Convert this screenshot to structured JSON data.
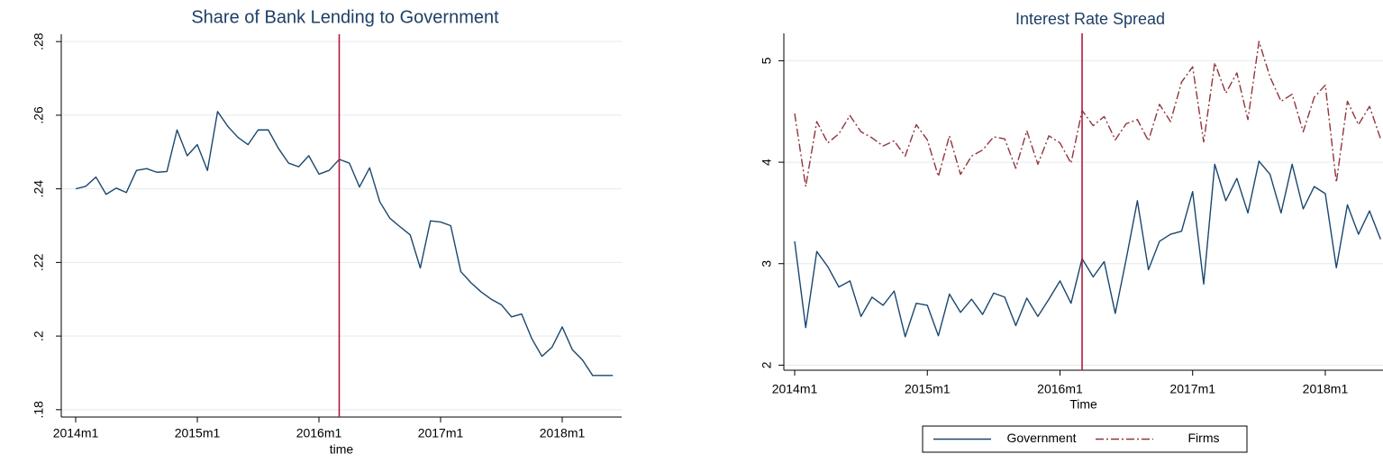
{
  "chart_data": [
    {
      "type": "line",
      "title": "Share of Bank Lending to Government",
      "xlabel": "time",
      "x": [
        "2014m1",
        "2014m2",
        "2014m3",
        "2014m4",
        "2014m5",
        "2014m6",
        "2014m7",
        "2014m8",
        "2014m9",
        "2014m10",
        "2014m11",
        "2014m12",
        "2015m1",
        "2015m2",
        "2015m3",
        "2015m4",
        "2015m5",
        "2015m6",
        "2015m7",
        "2015m8",
        "2015m9",
        "2015m10",
        "2015m11",
        "2015m12",
        "2016m1",
        "2016m2",
        "2016m3",
        "2016m4",
        "2016m5",
        "2016m6",
        "2016m7",
        "2016m8",
        "2016m9",
        "2016m10",
        "2016m11",
        "2016m12",
        "2017m1",
        "2017m2",
        "2017m3",
        "2017m4",
        "2017m5",
        "2017m6",
        "2017m7",
        "2017m8",
        "2017m9",
        "2017m10",
        "2017m11",
        "2017m12",
        "2018m1",
        "2018m2",
        "2018m3",
        "2018m4",
        "2018m5",
        "2018m6"
      ],
      "values": [
        0.24,
        0.2407,
        0.2432,
        0.2385,
        0.2402,
        0.239,
        0.245,
        0.2455,
        0.2445,
        0.2447,
        0.256,
        0.249,
        0.252,
        0.245,
        0.261,
        0.257,
        0.254,
        0.252,
        0.256,
        0.256,
        0.251,
        0.247,
        0.246,
        0.249,
        0.244,
        0.245,
        0.248,
        0.247,
        0.2405,
        0.2457,
        0.2365,
        0.232,
        0.2297,
        0.2275,
        0.2185,
        0.2313,
        0.231,
        0.23,
        0.2175,
        0.2145,
        0.212,
        0.21,
        0.2085,
        0.2052,
        0.206,
        0.1993,
        0.1945,
        0.197,
        0.2025,
        0.1963,
        0.1935,
        0.1893,
        0.1893,
        0.1893
      ],
      "color": "#1a476f",
      "ylim": [
        0.178,
        0.282
      ],
      "yticks": [
        {
          "value": 0.18,
          "label": ".18"
        },
        {
          "value": 0.2,
          "label": ".2"
        },
        {
          "value": 0.22,
          "label": ".22"
        },
        {
          "value": 0.24,
          "label": ".24"
        },
        {
          "value": 0.26,
          "label": ".26"
        },
        {
          "value": 0.28,
          "label": ".28"
        }
      ],
      "xticks": [
        "2014m1",
        "2015m1",
        "2016m1",
        "2017m1",
        "2018m1"
      ],
      "grid": true,
      "vline": {
        "x": "2016m3",
        "color": "#b0173d"
      }
    },
    {
      "type": "line",
      "title": "Interest Rate Spread",
      "xlabel": "Time",
      "x": [
        "2014m1",
        "2014m2",
        "2014m3",
        "2014m4",
        "2014m5",
        "2014m6",
        "2014m7",
        "2014m8",
        "2014m9",
        "2014m10",
        "2014m11",
        "2014m12",
        "2015m1",
        "2015m2",
        "2015m3",
        "2015m4",
        "2015m5",
        "2015m6",
        "2015m7",
        "2015m8",
        "2015m9",
        "2015m10",
        "2015m11",
        "2015m12",
        "2016m1",
        "2016m2",
        "2016m3",
        "2016m4",
        "2016m5",
        "2016m6",
        "2016m7",
        "2016m8",
        "2016m9",
        "2016m10",
        "2016m11",
        "2016m12",
        "2017m1",
        "2017m2",
        "2017m3",
        "2017m4",
        "2017m5",
        "2017m6",
        "2017m7",
        "2017m8",
        "2017m9",
        "2017m10",
        "2017m11",
        "2017m12",
        "2018m1",
        "2018m2",
        "2018m3",
        "2018m4",
        "2018m5",
        "2018m6"
      ],
      "series": [
        {
          "name": "Government",
          "color": "#1a476f",
          "linestyle": "solid",
          "values": [
            3.22,
            2.37,
            3.12,
            2.97,
            2.77,
            2.83,
            2.48,
            2.67,
            2.59,
            2.73,
            2.28,
            2.61,
            2.59,
            2.29,
            2.7,
            2.52,
            2.65,
            2.5,
            2.71,
            2.67,
            2.39,
            2.66,
            2.48,
            2.65,
            2.83,
            2.61,
            3.05,
            2.87,
            3.02,
            2.51,
            3.05,
            3.62,
            2.94,
            3.22,
            3.29,
            3.32,
            3.71,
            2.8,
            3.98,
            3.62,
            3.84,
            3.5,
            4.01,
            3.88,
            3.5,
            3.98,
            3.54,
            3.76,
            3.69,
            2.96,
            3.58,
            3.29,
            3.52,
            3.24
          ]
        },
        {
          "name": "Firms",
          "color": "#90353b",
          "linestyle": "dashdot",
          "values": [
            4.48,
            3.76,
            4.4,
            4.19,
            4.28,
            4.46,
            4.3,
            4.24,
            4.16,
            4.21,
            4.06,
            4.37,
            4.22,
            3.86,
            4.26,
            3.88,
            4.06,
            4.12,
            4.25,
            4.23,
            3.94,
            4.31,
            3.98,
            4.26,
            4.19,
            3.99,
            4.51,
            4.36,
            4.45,
            4.22,
            4.38,
            4.42,
            4.21,
            4.57,
            4.4,
            4.79,
            4.94,
            4.2,
            4.98,
            4.68,
            4.88,
            4.42,
            5.19,
            4.84,
            4.6,
            4.67,
            4.3,
            4.64,
            4.76,
            3.8,
            4.6,
            4.37,
            4.55,
            4.23
          ]
        }
      ],
      "ylim": [
        1.95,
        5.27
      ],
      "yticks": [
        2,
        3,
        4,
        5
      ],
      "xticks": [
        "2014m1",
        "2015m1",
        "2016m1",
        "2017m1",
        "2018m1"
      ],
      "grid": true,
      "legend": "bottom",
      "vline": {
        "x": "2016m3",
        "color": "#b0173d"
      }
    }
  ]
}
